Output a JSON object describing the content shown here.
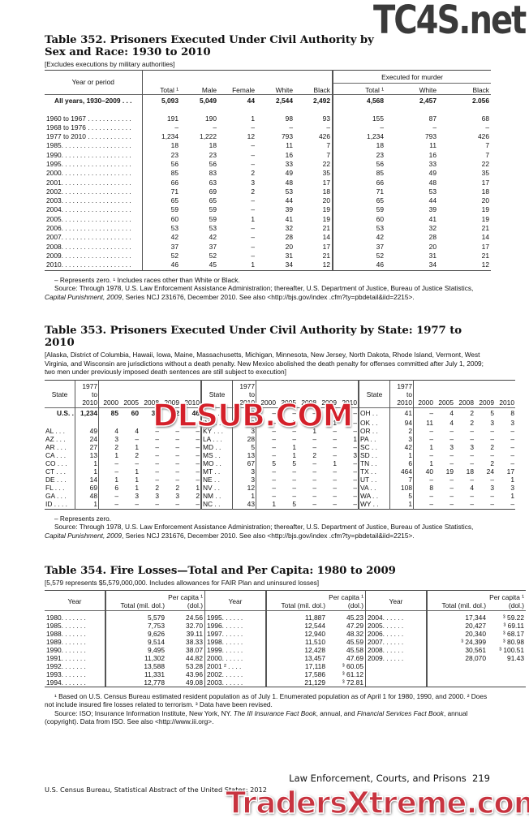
{
  "watermarks": {
    "top": "TC4S.net",
    "middle": "DLSUB.COM",
    "bottom": "TradersXtreme.com"
  },
  "t352": {
    "title": "Table 352. Prisoners Executed Under Civil Authority by Sex and Race: 1930 to 2010",
    "note": "[Excludes executions by military authorities]",
    "group_header": "Executed for murder",
    "headers": [
      "Year or period",
      "Total ¹",
      "Male",
      "Female",
      "White",
      "Black",
      "Total ¹",
      "White",
      "Black"
    ],
    "total_row": [
      "All years, 1930–2009 . . .",
      "5,093",
      "5,049",
      "44",
      "2,544",
      "2,492",
      "4,568",
      "2,457",
      "2.056"
    ],
    "rows": [
      [
        "1960 to 1967 . . . . . . . . . . . .",
        "191",
        "190",
        "1",
        "98",
        "93",
        "155",
        "87",
        "68"
      ],
      [
        "1968 to 1976 . . . . . . . . . . . .",
        "–",
        "–",
        "–",
        "–",
        "–",
        "–",
        "–",
        "–"
      ],
      [
        "1977 to 2010 . . . . . . . . . . . .",
        "1,234",
        "1,222",
        "12",
        "793",
        "426",
        "1,234",
        "793",
        "426"
      ],
      [
        "1985. . . . . . . . . . . . . . . . . . .",
        "18",
        "18",
        "–",
        "11",
        "7",
        "18",
        "11",
        "7"
      ],
      [
        "1990. . . . . . . . . . . . . . . . . . .",
        "23",
        "23",
        "–",
        "16",
        "7",
        "23",
        "16",
        "7"
      ],
      [
        "1995. . . . . . . . . . . . . . . . . . .",
        "56",
        "56",
        "–",
        "33",
        "22",
        "56",
        "33",
        "22"
      ],
      [
        "2000. . . . . . . . . . . . . . . . . . .",
        "85",
        "83",
        "2",
        "49",
        "35",
        "85",
        "49",
        "35"
      ],
      [
        "2001. . . . . . . . . . . . . . . . . . .",
        "66",
        "63",
        "3",
        "48",
        "17",
        "66",
        "48",
        "17"
      ],
      [
        "2002. . . . . . . . . . . . . . . . . . .",
        "71",
        "69",
        "2",
        "53",
        "18",
        "71",
        "53",
        "18"
      ],
      [
        "2003. . . . . . . . . . . . . . . . . . .",
        "65",
        "65",
        "–",
        "44",
        "20",
        "65",
        "44",
        "20"
      ],
      [
        "2004. . . . . . . . . . . . . . . . . . .",
        "59",
        "59",
        "–",
        "39",
        "19",
        "59",
        "39",
        "19"
      ],
      [
        "2005. . . . . . . . . . . . . . . . . . .",
        "60",
        "59",
        "1",
        "41",
        "19",
        "60",
        "41",
        "19"
      ],
      [
        "2006. . . . . . . . . . . . . . . . . . .",
        "53",
        "53",
        "–",
        "32",
        "21",
        "53",
        "32",
        "21"
      ],
      [
        "2007. . . . . . . . . . . . . . . . . . .",
        "42",
        "42",
        "–",
        "28",
        "14",
        "42",
        "28",
        "14"
      ],
      [
        "2008. . . . . . . . . . . . . . . . . . .",
        "37",
        "37",
        "–",
        "20",
        "17",
        "37",
        "20",
        "17"
      ],
      [
        "2009. . . . . . . . . . . . . . . . . . .",
        "52",
        "52",
        "–",
        "31",
        "21",
        "52",
        "31",
        "21"
      ],
      [
        "2010. . . . . . . . . . . . . . . . . . .",
        "46",
        "45",
        "1",
        "34",
        "12",
        "46",
        "34",
        "12"
      ]
    ],
    "footnote": "– Represents zero. ¹ Includes races other than White or Black.",
    "source_a": "Source: Through 1978, U.S. Law Enforcement Assistance Administration; thereafter, U.S. Department of Justice, Bureau of Justice Statistics, ",
    "source_italic": "Capital Punishment, 2009",
    "source_b": ", Series NCJ 231676, December 2010. See also <http://bjs.gov/index .cfm?ty=pbdetail&iid=2215>."
  },
  "t353": {
    "title": "Table 353. Prisoners Executed Under Civil Authority by State: 1977 to 2010",
    "note": "[Alaska, District of Columbia, Hawaii, Iowa, Maine, Massachusetts, Michigan, Minnesota, New Jersey, North Dakota, Rhode Island, Vermont, West Virginia, and Wisconsin are jurisdictions without a death penalty. New Mexico abolished the death penalty for offenses committed after July 1, 2009; two men under previously imposed death sentences are still subject to execution]",
    "headers": [
      "State",
      "1977 to 2010",
      "2000",
      "2005",
      "2008",
      "2009",
      "2010"
    ],
    "columns": [
      [
        [
          "U.S. .",
          "1,234",
          "85",
          "60",
          "37",
          "52",
          "46"
        ],
        [
          "",
          "",
          "",
          "",
          "",
          "",
          ""
        ],
        [
          "AL . . .",
          "49",
          "4",
          "4",
          "–",
          "–",
          "–"
        ],
        [
          "AZ . . .",
          "24",
          "3",
          "–",
          "–",
          "–",
          "–"
        ],
        [
          "AR . . .",
          "27",
          "2",
          "1",
          "–",
          "–",
          "–"
        ],
        [
          "CA . . .",
          "13",
          "1",
          "2",
          "–",
          "–",
          "–"
        ],
        [
          "CO . . .",
          "1",
          "–",
          "–",
          "–",
          "–",
          "–"
        ],
        [
          "CT . . .",
          "1",
          "–",
          "1",
          "–",
          "–",
          "–"
        ],
        [
          "DE . . .",
          "14",
          "1",
          "1",
          "–",
          "–",
          "–"
        ],
        [
          "FL . . .",
          "69",
          "6",
          "1",
          "2",
          "2",
          "1"
        ],
        [
          "GA . . .",
          "48",
          "–",
          "3",
          "3",
          "3",
          "2"
        ],
        [
          "ID . . . .",
          "1",
          "–",
          "–",
          "–",
          "–",
          "–"
        ]
      ],
      [
        [
          "IL . . .",
          "12",
          "–",
          "–",
          "–",
          "–",
          "–"
        ],
        [
          "IN . . .",
          "20",
          "–",
          "5",
          "–",
          "1",
          "–"
        ],
        [
          "KY . . .",
          "3",
          "–",
          "–",
          "1",
          "–",
          "–"
        ],
        [
          "LA . . .",
          "28",
          "–",
          "–",
          "–",
          "–",
          "1"
        ],
        [
          "MD . .",
          "5",
          "–",
          "1",
          "–",
          "–",
          "–"
        ],
        [
          "MS . .",
          "13",
          "–",
          "1",
          "2",
          "–",
          "3"
        ],
        [
          "MO . .",
          "67",
          "5",
          "5",
          "–",
          "1",
          "–"
        ],
        [
          "MT . .",
          "3",
          "–",
          "–",
          "–",
          "–",
          "–"
        ],
        [
          "NE . .",
          "3",
          "–",
          "–",
          "–",
          "–",
          "–"
        ],
        [
          "NV . .",
          "12",
          "–",
          "–",
          "–",
          "–",
          "–"
        ],
        [
          "NM . .",
          "1",
          "–",
          "–",
          "–",
          "–",
          "–"
        ],
        [
          "NC . .",
          "43",
          "1",
          "5",
          "–",
          "–",
          "–"
        ]
      ],
      [
        [
          "OH . .",
          "41",
          "–",
          "4",
          "2",
          "5",
          "8"
        ],
        [
          "OK . .",
          "94",
          "11",
          "4",
          "2",
          "3",
          "3"
        ],
        [
          "OR . .",
          "2",
          "–",
          "–",
          "–",
          "–",
          "–"
        ],
        [
          "PA . .",
          "3",
          "–",
          "–",
          "–",
          "–",
          "–"
        ],
        [
          "SC . .",
          "42",
          "1",
          "3",
          "3",
          "2",
          "–"
        ],
        [
          "SD . .",
          "1",
          "–",
          "–",
          "–",
          "–",
          "–"
        ],
        [
          "TN . .",
          "6",
          "1",
          "–",
          "–",
          "2",
          "–"
        ],
        [
          "TX . .",
          "464",
          "40",
          "19",
          "18",
          "24",
          "17"
        ],
        [
          "UT . .",
          "7",
          "–",
          "–",
          "–",
          "–",
          "1"
        ],
        [
          "VA . .",
          "108",
          "8",
          "–",
          "4",
          "3",
          "3"
        ],
        [
          "WA . .",
          "5",
          "–",
          "–",
          "–",
          "–",
          "1"
        ],
        [
          "WY . .",
          "1",
          "–",
          "–",
          "–",
          "–",
          "–"
        ]
      ]
    ],
    "footnote": "– Represents zero.",
    "source_a": "Source: Through 1978, U.S. Law Enforcement Assistance Administration; thereafter, U.S. Department of Justice, Bureau of Justice Statistics, ",
    "source_italic": "Capital Punishment, 2009",
    "source_b": ", Series NCJ 231676, December 2010. See also <http://bjs.gov/index .cfm?ty=pbdetail&iid=2215>."
  },
  "t354": {
    "title": "Table 354. Fire Losses—Total and Per Capita: 1980 to 2009",
    "note": "[5,579 represents $5,579,000,000. Includes allowances for FAIR Plan and uninsured losses]",
    "headers": [
      "Year",
      "Total (mil. dol.)",
      "Per capita ¹ (dol.)"
    ],
    "columns": [
      [
        [
          "1980. . . . . . .",
          "5,579",
          "24.56"
        ],
        [
          "1985. . . . . . .",
          "7,753",
          "32.70"
        ],
        [
          "1988. . . . . . .",
          "9,626",
          "39.11"
        ],
        [
          "1989. . . . . . .",
          "9,514",
          "38.33"
        ],
        [
          "1990. . . . . . .",
          "9,495",
          "38.07"
        ],
        [
          "1991. . . . . . .",
          "11,302",
          "44.82"
        ],
        [
          "1992. . . . . . .",
          "13,588",
          "53.28"
        ],
        [
          "1993. . . . . . .",
          "11,331",
          "43.96"
        ],
        [
          "1994. . . . . . .",
          "12,778",
          "49.08"
        ]
      ],
      [
        [
          "1995. . . . . .",
          "11,887",
          "45.23"
        ],
        [
          "1996. . . . . .",
          "12,544",
          "47.29"
        ],
        [
          "1997. . . . . .",
          "12,940",
          "48.32"
        ],
        [
          "1998. . . . . .",
          "11,510",
          "45.59"
        ],
        [
          "1999. . . . . .",
          "12,428",
          "45.58"
        ],
        [
          "2000. . . . . .",
          "13,457",
          "47.69"
        ],
        [
          "2001 ² . . . .",
          "17,118",
          "³ 60.05"
        ],
        [
          "2002. . . . . .",
          "17,586",
          "³ 61.12"
        ],
        [
          "2003. . . . . .",
          "21,129",
          "³ 72.81"
        ]
      ],
      [
        [
          "2004. . . . . .",
          "17,344",
          "³ 59.22"
        ],
        [
          "2005. . . . . .",
          "20,427",
          "³ 69.11"
        ],
        [
          "2006. . . . . .",
          "20,340",
          "³ 68.17"
        ],
        [
          "2007. . . . . .",
          "³ 24,399",
          "³ 80.98"
        ],
        [
          "2008. . . . . .",
          "30,561",
          "³ 100.51"
        ],
        [
          "2009. . . . . .",
          "28,070",
          "91.43"
        ],
        [
          "",
          "",
          ""
        ],
        [
          "",
          "",
          ""
        ],
        [
          "",
          "",
          ""
        ]
      ]
    ],
    "footnote": "¹ Based on U.S. Census Bureau estimated resident population as of July 1. Enumerated population as of April 1 for 1980, 1990, and 2000. ² Does not include insured fire losses related to terrorism. ³ Data have been revised.",
    "source_a": "Source: ISO; Insurance Information Institute, New York, NY. ",
    "source_italic": "The III Insurance Fact Book",
    "source_b": ", annual, and ",
    "source_italic2": "Financial Services Fact Book",
    "source_c": ", annual (copyright). Data from ISO. See also <http://www.iii.org>."
  },
  "footer": {
    "chapter": "Law Enforcement, Courts, and Prisons  219",
    "publication": "U.S. Census Bureau, Statistical Abstract of the United States: 2012"
  }
}
